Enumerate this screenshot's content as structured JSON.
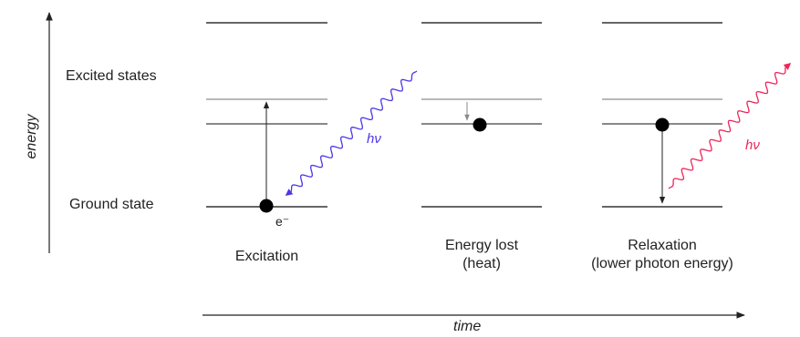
{
  "axis": {
    "y_label": "energy",
    "x_label": "time"
  },
  "levels": {
    "excited_label": "Excited states",
    "ground_label": "Ground state"
  },
  "panels": [
    {
      "caption_line1": "Excitation",
      "caption_line2": ""
    },
    {
      "caption_line1": "Energy lost",
      "caption_line2": "(heat)"
    },
    {
      "caption_line1": "Relaxation",
      "caption_line2": "(lower photon energy)"
    }
  ],
  "electron_label": "e⁻",
  "photon_labels": {
    "absorbed": "hν",
    "emitted": "hν"
  },
  "colors": {
    "absorbed_photon": "#4b36e8",
    "emitted_photon": "#f0245a",
    "level_dark": "#333333",
    "level_gray": "#a0a0a0",
    "electron": "#000000"
  }
}
